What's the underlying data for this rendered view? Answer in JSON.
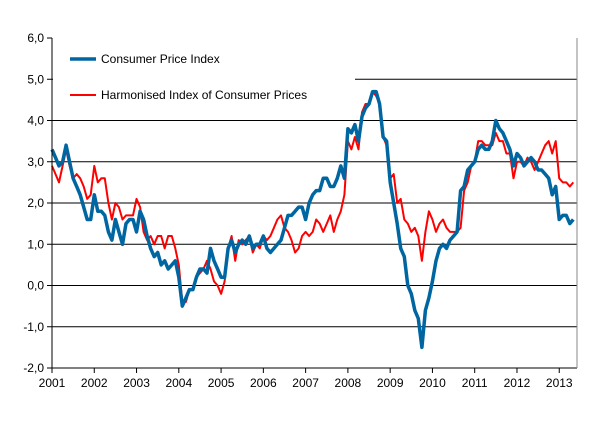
{
  "chart_data": {
    "type": "line",
    "title": "",
    "xlabel": "",
    "ylabel": "",
    "x_start": "2001-01",
    "x_frequency": "monthly",
    "xlim": [
      2001,
      2013.42
    ],
    "ylim": [
      -2,
      6
    ],
    "yticks": [
      "-2,0",
      "-1,0",
      "0,0",
      "1,0",
      "2,0",
      "3,0",
      "4,0",
      "5,0",
      "6,0"
    ],
    "xticks": [
      "2001",
      "2002",
      "2003",
      "2004",
      "2005",
      "2006",
      "2007",
      "2008",
      "2009",
      "2010",
      "2011",
      "2012",
      "2013"
    ],
    "grid": true,
    "legend_placement": "top-left",
    "series": [
      {
        "name": "Consumer Price Index",
        "color": "#0066a1",
        "values": [
          3.3,
          3.1,
          2.9,
          3.0,
          3.4,
          3.0,
          2.6,
          2.4,
          2.2,
          1.9,
          1.6,
          1.6,
          2.2,
          1.8,
          1.8,
          1.7,
          1.3,
          1.1,
          1.6,
          1.3,
          1.0,
          1.5,
          1.6,
          1.6,
          1.3,
          1.8,
          1.6,
          1.2,
          0.9,
          0.7,
          0.8,
          0.5,
          0.6,
          0.4,
          0.5,
          0.6,
          0.2,
          -0.5,
          -0.3,
          -0.1,
          -0.1,
          0.2,
          0.4,
          0.4,
          0.3,
          0.9,
          0.6,
          0.4,
          0.2,
          0.2,
          0.9,
          1.1,
          0.8,
          1.0,
          1.1,
          1.0,
          1.2,
          0.9,
          1.0,
          1.0,
          1.2,
          0.9,
          0.8,
          0.9,
          1.0,
          1.1,
          1.4,
          1.7,
          1.7,
          1.8,
          1.9,
          1.9,
          1.6,
          2.0,
          2.2,
          2.3,
          2.3,
          2.6,
          2.6,
          2.4,
          2.4,
          2.6,
          2.9,
          2.6,
          3.8,
          3.7,
          3.9,
          3.5,
          4.1,
          4.3,
          4.4,
          4.7,
          4.7,
          4.4,
          3.6,
          3.5,
          2.5,
          2.0,
          1.5,
          0.9,
          0.7,
          0.0,
          -0.2,
          -0.6,
          -0.8,
          -1.5,
          -0.6,
          -0.3,
          0.1,
          0.6,
          0.9,
          1.0,
          0.9,
          1.1,
          1.2,
          1.3,
          2.3,
          2.4,
          2.8,
          2.9,
          3.0,
          3.3,
          3.4,
          3.3,
          3.3,
          3.5,
          4.0,
          3.8,
          3.7,
          3.5,
          3.3,
          2.9,
          3.2,
          3.1,
          2.9,
          3.0,
          3.1,
          3.0,
          2.8,
          2.8,
          2.7,
          2.6,
          2.2,
          2.4,
          1.6,
          1.7,
          1.7,
          1.5,
          1.6
        ]
      },
      {
        "name": "Harmonised Index of Consumer Prices",
        "color": "#ff0000",
        "values": [
          2.9,
          2.7,
          2.5,
          2.9,
          3.3,
          2.9,
          2.6,
          2.7,
          2.6,
          2.4,
          2.1,
          2.2,
          2.9,
          2.5,
          2.6,
          2.6,
          2.0,
          1.6,
          2.0,
          1.9,
          1.6,
          1.7,
          1.7,
          1.7,
          2.1,
          1.9,
          1.3,
          1.1,
          1.2,
          1.0,
          1.2,
          1.2,
          0.9,
          1.2,
          1.2,
          0.9,
          0.5,
          -0.4,
          -0.4,
          -0.1,
          -0.1,
          0.2,
          0.3,
          0.4,
          0.6,
          0.4,
          0.1,
          0.0,
          -0.2,
          0.1,
          0.9,
          1.2,
          0.6,
          1.1,
          1.0,
          1.1,
          1.2,
          0.8,
          1.0,
          0.9,
          1.2,
          1.1,
          1.2,
          1.4,
          1.6,
          1.7,
          1.4,
          1.3,
          1.1,
          0.8,
          0.9,
          1.2,
          1.3,
          1.2,
          1.3,
          1.6,
          1.5,
          1.3,
          1.5,
          1.7,
          1.3,
          1.6,
          1.8,
          2.2,
          3.5,
          3.3,
          3.6,
          3.3,
          4.2,
          4.4,
          4.4,
          4.7,
          4.6,
          4.4,
          3.6,
          3.4,
          2.6,
          2.7,
          2.0,
          2.1,
          1.6,
          1.5,
          1.3,
          1.4,
          1.2,
          0.6,
          1.3,
          1.8,
          1.6,
          1.3,
          1.5,
          1.6,
          1.4,
          1.3,
          1.3,
          1.3,
          1.4,
          2.3,
          2.5,
          2.9,
          3.0,
          3.5,
          3.5,
          3.4,
          3.4,
          3.4,
          3.7,
          3.5,
          3.5,
          3.2,
          3.2,
          2.6,
          3.0,
          3.0,
          2.9,
          3.1,
          3.0,
          2.8,
          3.0,
          3.2,
          3.4,
          3.5,
          3.2,
          3.5,
          2.6,
          2.5,
          2.5,
          2.4,
          2.5
        ]
      }
    ]
  }
}
